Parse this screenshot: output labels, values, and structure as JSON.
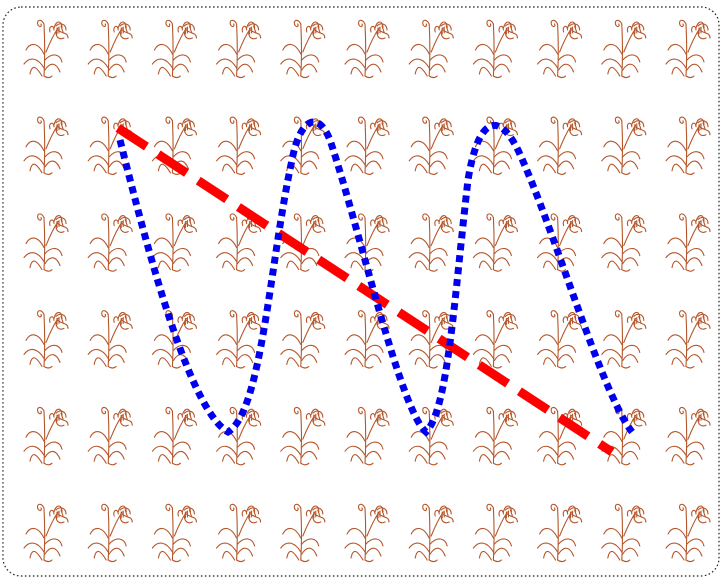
{
  "canvas": {
    "background": "#ffffff",
    "border_color": "#222222"
  },
  "pattern": {
    "motif": "flowering-plant-icon",
    "color": "#b5562a",
    "columns": 11,
    "rows": 6
  },
  "paths": [
    {
      "name": "dashed-line",
      "style": "dashed",
      "color": "#ff0000"
    },
    {
      "name": "dotted-wave",
      "style": "dotted",
      "color": "#0000ee"
    }
  ]
}
